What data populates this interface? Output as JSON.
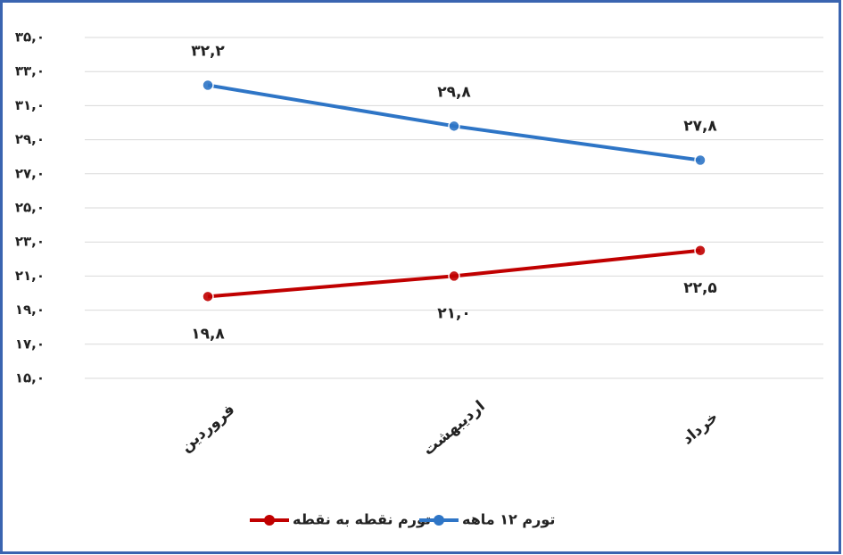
{
  "chart_data": {
    "type": "line",
    "categories": [
      "فروردین",
      "اردیبهشت",
      "خرداد"
    ],
    "series": [
      {
        "name": "تورم ۱۲ ماهه",
        "color": "#2e75c6",
        "values": [
          32.2,
          29.8,
          27.8
        ],
        "value_labels": [
          "۳۲,۲",
          "۲۹,۸",
          "۲۷,۸"
        ]
      },
      {
        "name": "تورم نقطه به نقطه",
        "color": "#c00000",
        "values": [
          19.8,
          21.0,
          22.5
        ],
        "value_labels": [
          "۱۹,۸",
          "۲۱,۰",
          "۲۲,۵"
        ]
      }
    ],
    "ylim": [
      15,
      35
    ],
    "yticks": [
      {
        "value": 15,
        "label": "۱۵,۰"
      },
      {
        "value": 17,
        "label": "۱۷,۰"
      },
      {
        "value": 19,
        "label": "۱۹,۰"
      },
      {
        "value": 21,
        "label": "۲۱,۰"
      },
      {
        "value": 23,
        "label": "۲۳,۰"
      },
      {
        "value": 25,
        "label": "۲۵,۰"
      },
      {
        "value": 27,
        "label": "۲۷,۰"
      },
      {
        "value": 29,
        "label": "۲۹,۰"
      },
      {
        "value": 31,
        "label": "۳۱,۰"
      },
      {
        "value": 33,
        "label": "۳۳,۰"
      },
      {
        "value": 35,
        "label": "۳۵,۰"
      }
    ],
    "grid": true,
    "legend": "bottom"
  }
}
